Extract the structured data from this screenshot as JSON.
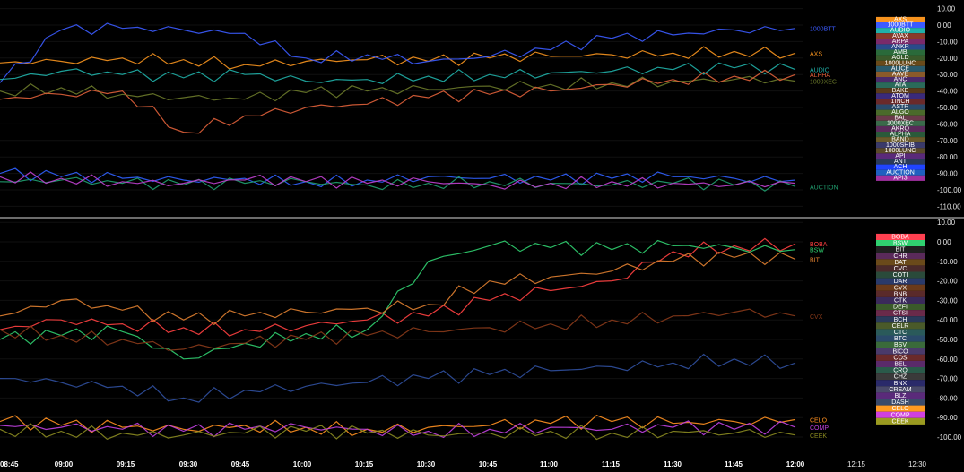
{
  "colors": {
    "background": "#000000",
    "divider": "#d9d9d9",
    "grid": "#111111"
  },
  "chart_data": [
    {
      "type": "line",
      "title": "",
      "ylim": [
        -110,
        10
      ],
      "y_ticks": [
        "10.00",
        "0.00",
        "-10.00",
        "-20.00",
        "-30.00",
        "-40.00",
        "-50.00",
        "-60.00",
        "-70.00",
        "-80.00",
        "-90.00",
        "-100.00",
        "-110.00"
      ],
      "x": [
        "08:45",
        "09:00",
        "09:15",
        "09:30",
        "09:45",
        "10:00",
        "10:15",
        "10:30",
        "10:45",
        "11:00",
        "11:15",
        "11:30",
        "11:45",
        "12:00"
      ],
      "series": [
        {
          "name": "AXS",
          "color": "#f7931e",
          "values": [
            -23,
            -22,
            -20,
            -21,
            -24,
            -22,
            -21,
            -22,
            -20,
            -19,
            -18,
            -17,
            -16,
            -17
          ]
        },
        {
          "name": "1000BTT",
          "color": "#3b5bff",
          "values": [
            -35,
            -3,
            -2,
            -3,
            -5,
            -20,
            -18,
            -22,
            -19,
            -15,
            -8,
            -6,
            -3,
            -2
          ]
        },
        {
          "name": "AUDIO",
          "color": "#20b0a8",
          "values": [
            -33,
            -28,
            -30,
            -32,
            -30,
            -34,
            -33,
            -31,
            -30,
            -29,
            -28,
            -27,
            -26,
            -27
          ]
        },
        {
          "name": "1000XEC",
          "color": "#6b7a2a",
          "values": [
            -40,
            -38,
            -42,
            -44,
            -45,
            -41,
            -40,
            -39,
            -37,
            -36,
            -35,
            -34,
            -33,
            -34
          ]
        },
        {
          "name": "ALPHA",
          "color": "#e0603a",
          "values": [
            -45,
            -42,
            -40,
            -65,
            -55,
            -50,
            -48,
            -44,
            -42,
            -40,
            -36,
            -33,
            -31,
            -30
          ]
        },
        {
          "name": "ACH",
          "color": "#3060ff",
          "values": [
            -90,
            -92,
            -93,
            -94,
            -93,
            -95,
            -94,
            -92,
            -93,
            -94,
            -93,
            -92,
            -93,
            -94
          ]
        },
        {
          "name": "AUCTION",
          "color": "#20a070",
          "values": [
            -95,
            -94,
            -96,
            -97,
            -96,
            -95,
            -97,
            -96,
            -95,
            -96,
            -97,
            -96,
            -97,
            -98
          ]
        },
        {
          "name": "API3",
          "color": "#c040d0",
          "values": [
            -92,
            -93,
            -95,
            -96,
            -94,
            -95,
            -96,
            -95,
            -97,
            -96,
            -95,
            -96,
            -97,
            -96
          ]
        }
      ],
      "legend": [
        "AXS",
        "1000BTT",
        "AUDIO",
        "AVAX",
        "ARPA",
        "ANKR",
        "AMB",
        "AGLD",
        "1000LUNC",
        "ALICE",
        "AAVE",
        "ANC",
        "ATA",
        "BAKE",
        "ATOM",
        "1INCH",
        "ASTR",
        "ALGO",
        "BAL",
        "1000XEC",
        "AKRO",
        "ALPHA",
        "BAND",
        "1000SHIB",
        "1000LUNC",
        "API",
        "ANT",
        "ACH",
        "AUCTION",
        "API3"
      ],
      "legend_colors": [
        "#f7931e",
        "#3b5bff",
        "#20b0a8",
        "#8a3a2a",
        "#7a2a6a",
        "#2a4a8a",
        "#2a6a3a",
        "#3a5a2a",
        "#6a4a1a",
        "#2a5a6a",
        "#8a5a2a",
        "#4a2a6a",
        "#2a6a5a",
        "#5a3a1a",
        "#3a2a7a",
        "#6a2a2a",
        "#2a4a6a",
        "#4a6a2a",
        "#6a3a4a",
        "#3a6a4a",
        "#5a2a5a",
        "#2a5a3a",
        "#6a5a2a",
        "#3a3a6a",
        "#5a4a2a",
        "#5a2a7a",
        "#2a3a5a",
        "#2044ff",
        "#2060c0",
        "#a030a0"
      ],
      "end_labels": [
        "AXS",
        "1000BTT",
        "AUDIO",
        "1000XEC",
        "ALPHA",
        "1000SHIB",
        "API",
        "AUCTION"
      ]
    },
    {
      "type": "line",
      "title": "",
      "ylim": [
        -100,
        10
      ],
      "y_ticks": [
        "10.00",
        "0.00",
        "-10.00",
        "-20.00",
        "-30.00",
        "-40.00",
        "-50.00",
        "-60.00",
        "-70.00",
        "-80.00",
        "-90.00",
        "-100.00"
      ],
      "x": [
        "08:45",
        "09:00",
        "09:15",
        "09:30",
        "09:45",
        "10:00",
        "10:15",
        "10:30",
        "10:45",
        "11:00",
        "11:15",
        "11:30",
        "11:45",
        "12:00"
      ],
      "series": [
        {
          "name": "BOBA",
          "color": "#ff4040",
          "values": [
            -45,
            -40,
            -42,
            -44,
            -45,
            -43,
            -40,
            -38,
            -30,
            -25,
            -20,
            -5,
            -2,
            -1
          ]
        },
        {
          "name": "BSW",
          "color": "#30d070",
          "values": [
            -50,
            -48,
            -46,
            -60,
            -52,
            -47,
            -45,
            -10,
            -2,
            -3,
            -4,
            -2,
            -3,
            -4
          ]
        },
        {
          "name": "BIT",
          "color": "#e08030",
          "values": [
            -38,
            -30,
            -35,
            -40,
            -38,
            -36,
            -34,
            -32,
            -20,
            -18,
            -15,
            -10,
            -8,
            -9
          ]
        },
        {
          "name": "CVX",
          "color": "#8a3a1a",
          "values": [
            -45,
            -48,
            -50,
            -55,
            -52,
            -50,
            -48,
            -46,
            -44,
            -42,
            -40,
            -38,
            -36,
            -38
          ]
        },
        {
          "name": "DASH",
          "color": "#3050a0",
          "values": [
            -70,
            -72,
            -74,
            -80,
            -76,
            -74,
            -72,
            -70,
            -68,
            -66,
            -64,
            -62,
            -60,
            -62
          ]
        },
        {
          "name": "CELO",
          "color": "#ff9020",
          "values": [
            -92,
            -94,
            -95,
            -96,
            -94,
            -95,
            -96,
            -95,
            -94,
            -93,
            -92,
            -93,
            -92,
            -91
          ]
        },
        {
          "name": "COMP",
          "color": "#c040e0",
          "values": [
            -94,
            -95,
            -96,
            -97,
            -96,
            -95,
            -96,
            -97,
            -96,
            -95,
            -96,
            -95,
            -96,
            -95
          ]
        },
        {
          "name": "CEEK",
          "color": "#8a8a20",
          "values": [
            -96,
            -97,
            -98,
            -99,
            -98,
            -97,
            -98,
            -99,
            -98,
            -97,
            -98,
            -97,
            -98,
            -99
          ]
        }
      ],
      "legend": [
        "BOBA",
        "BSW",
        "BIT",
        "CHR",
        "BAT",
        "CVC",
        "COTI",
        "DAR",
        "CVX",
        "BNB",
        "CTK",
        "DEFI",
        "CTSI",
        "BCH",
        "CELR",
        "CTC",
        "BTC",
        "BSV",
        "BICO",
        "COS",
        "BEL",
        "CRO",
        "CHZ",
        "BNX",
        "CREAM",
        "BLZ",
        "DASH",
        "CELO",
        "COMP",
        "CEEK"
      ],
      "legend_colors": [
        "#ff4050",
        "#30d070",
        "#202020",
        "#5a2a5a",
        "#6a4a1a",
        "#4a2a2a",
        "#2a4a3a",
        "#2a3a6a",
        "#6a3a1a",
        "#5a2a2a",
        "#3a2a5a",
        "#3a5a2a",
        "#6a2a4a",
        "#2a3a5a",
        "#4a5a2a",
        "#2a5a5a",
        "#2a4a6a",
        "#3a6a3a",
        "#4a3a6a",
        "#6a2a2a",
        "#5a2a6a",
        "#2a5a4a",
        "#3a3a3a",
        "#2a2a6a",
        "#4a4a6a",
        "#5a2a7a",
        "#3a4a6a",
        "#ff9a20",
        "#d040e0",
        "#9a9a20"
      ],
      "end_labels": [
        "BOBA",
        "BSW",
        "BIT",
        "CRO",
        "CVX",
        "CELO",
        "COMP",
        "CEEK"
      ]
    }
  ]
}
